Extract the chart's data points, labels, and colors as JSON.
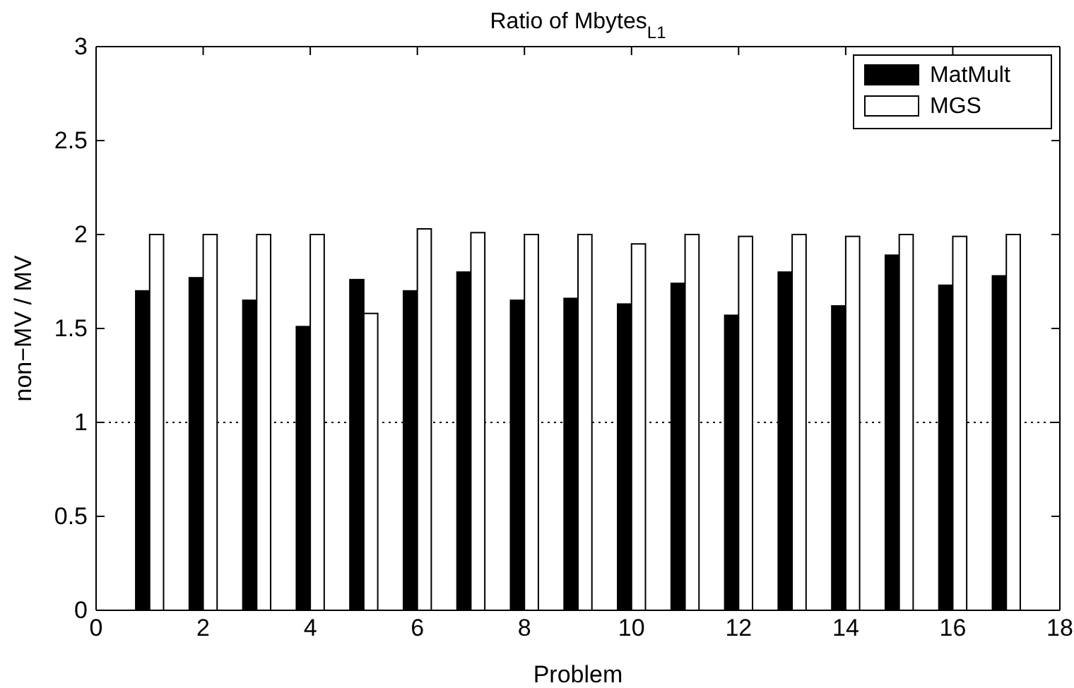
{
  "chart_data": {
    "type": "bar",
    "title": "Ratio of Mbytes$_{L1}$",
    "xlabel": "Problem",
    "ylabel": "non−MV / MV",
    "x": [
      1,
      2,
      3,
      4,
      5,
      6,
      7,
      8,
      9,
      10,
      11,
      12,
      13,
      14,
      15,
      16,
      17
    ],
    "series": [
      {
        "name": "MatMult",
        "color": "#000000",
        "values": [
          1.7,
          1.77,
          1.65,
          1.51,
          1.76,
          1.7,
          1.8,
          1.65,
          1.66,
          1.63,
          1.74,
          1.57,
          1.8,
          1.62,
          1.89,
          1.73,
          1.78
        ]
      },
      {
        "name": "MGS",
        "color": "#ffffff",
        "values": [
          2.0,
          2.0,
          2.0,
          2.0,
          1.58,
          2.03,
          2.01,
          2.0,
          2.0,
          1.95,
          2.0,
          1.99,
          2.0,
          1.99,
          2.0,
          1.99,
          2.0
        ]
      }
    ],
    "xlim": [
      0,
      18
    ],
    "xticks": [
      0,
      2,
      4,
      6,
      8,
      10,
      12,
      14,
      16,
      18
    ],
    "ylim": [
      0,
      3
    ],
    "yticks": [
      0,
      0.5,
      1,
      1.5,
      2,
      2.5,
      3
    ],
    "ref_lines": [
      {
        "axis": "y",
        "value": 1,
        "line_style": "dotted",
        "color": "#000000"
      }
    ],
    "legend": "top right",
    "grid": false
  }
}
